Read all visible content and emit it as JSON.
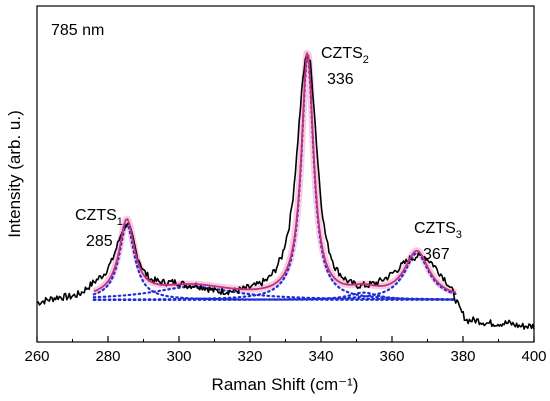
{
  "chart_data": {
    "type": "line",
    "title": "",
    "xlabel": "Raman Shift (cm⁻¹)",
    "ylabel": "Intensity (arb. u.)",
    "xlim": [
      260,
      400
    ],
    "ylim": [
      0,
      1
    ],
    "x_ticks": [
      "260",
      "280",
      "300",
      "320",
      "340",
      "360",
      "380",
      "400"
    ],
    "grid": false,
    "legend": "none",
    "annotations": {
      "excitation": "785 nm",
      "peak1_name": "CZTS",
      "peak1_sub": "1",
      "peak1_value": "285",
      "peak2_name": "CZTS",
      "peak2_sub": "2",
      "peak2_value": "336",
      "peak3_name": "CZTS",
      "peak3_sub": "3",
      "peak3_value": "367"
    },
    "colors": {
      "measured": "#000000",
      "fit": "#c4327a",
      "components": "#1f2fd6",
      "fit_band": "#f4b8dc"
    },
    "fit_range": [
      276,
      378
    ],
    "baseline": 0.11,
    "components": [
      {
        "center": 285.3,
        "width": 2.6,
        "amplitude": 0.26
      },
      {
        "center": 336.2,
        "width": 2.05,
        "amplitude": 0.84
      },
      {
        "center": 367.0,
        "width": 4.2,
        "amplitude": 0.16
      },
      {
        "center": 304.0,
        "width": 14.0,
        "amplitude": 0.045
      },
      {
        "center": 352.0,
        "width": 5.0,
        "amplitude": 0.025
      }
    ],
    "measured": {
      "x": [
        260,
        263,
        266,
        269,
        272,
        275,
        277,
        279,
        281,
        283,
        284,
        285,
        286,
        287,
        288,
        290,
        292,
        295,
        298,
        300,
        302,
        305,
        308,
        310,
        313,
        316,
        319,
        322,
        325,
        327,
        329,
        331,
        332,
        333,
        334,
        335,
        336,
        337,
        338,
        339,
        340,
        341,
        342,
        344,
        346,
        348,
        350,
        353,
        356,
        359,
        361,
        363,
        365,
        367,
        369,
        371,
        373,
        375,
        377,
        379,
        381,
        384,
        387,
        390,
        393,
        396,
        400
      ],
      "y": [
        0.1,
        0.11,
        0.12,
        0.12,
        0.13,
        0.16,
        0.18,
        0.2,
        0.24,
        0.31,
        0.35,
        0.37,
        0.36,
        0.32,
        0.27,
        0.21,
        0.18,
        0.17,
        0.17,
        0.17,
        0.16,
        0.16,
        0.15,
        0.14,
        0.14,
        0.14,
        0.15,
        0.16,
        0.18,
        0.21,
        0.26,
        0.36,
        0.45,
        0.58,
        0.74,
        0.88,
        0.96,
        0.92,
        0.78,
        0.6,
        0.45,
        0.35,
        0.29,
        0.22,
        0.19,
        0.17,
        0.16,
        0.16,
        0.17,
        0.19,
        0.21,
        0.23,
        0.25,
        0.26,
        0.26,
        0.24,
        0.21,
        0.18,
        0.14,
        0.08,
        0.04,
        0.04,
        0.03,
        0.03,
        0.03,
        0.02,
        0.02
      ]
    }
  }
}
